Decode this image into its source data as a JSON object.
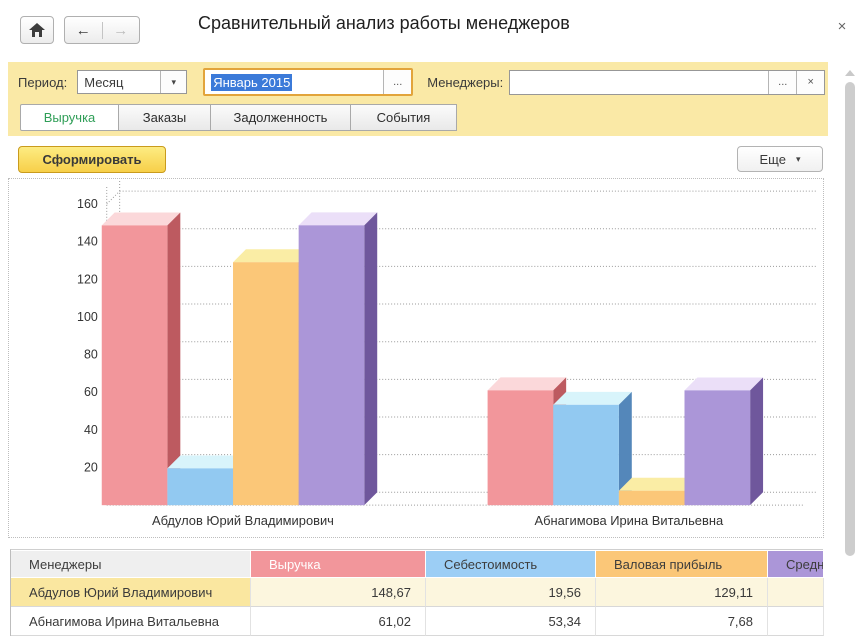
{
  "window": {
    "title": "Сравнительный анализ работы менеджеров",
    "close": "×"
  },
  "nav": {
    "back": "←",
    "forward": "→"
  },
  "filters": {
    "period_label": "Период:",
    "period_type_value": "Месяц",
    "dropdown_arrow": "▾",
    "period_value": "Январь 2015",
    "ellipsis": "...",
    "managers_label": "Менеджеры:",
    "managers_value": "",
    "clear": "×"
  },
  "tabs": [
    {
      "label": "Выручка",
      "active": true
    },
    {
      "label": "Заказы",
      "active": false
    },
    {
      "label": "Задолженность",
      "active": false
    },
    {
      "label": "События",
      "active": false
    }
  ],
  "actions": {
    "generate_label": "Сформировать",
    "more_label": "Еще",
    "more_arrow": "▾"
  },
  "chart_data": {
    "type": "bar",
    "style": "3d-column",
    "categories": [
      "Абдулов Юрий Владимирович",
      "Абнагимова Ирина Витальевна"
    ],
    "series": [
      {
        "name": "Выручка",
        "values": [
          148.67,
          61.02
        ],
        "color": "#f2969b",
        "top": "#fbd8da",
        "side": "#bd5a60"
      },
      {
        "name": "Себестоимость",
        "values": [
          19.56,
          53.34
        ],
        "color": "#92c9f1",
        "top": "#d8f4fb",
        "side": "#5487ba"
      },
      {
        "name": "Валовая прибыль",
        "values": [
          129.11,
          7.68
        ],
        "color": "#fbc778",
        "top": "#faeda5",
        "side": "#d79a50"
      },
      {
        "name": "Средн",
        "values": [
          148.7,
          61.0
        ],
        "color": "#ab96d8",
        "top": "#ebdff8",
        "side": "#6f579c",
        "note": "series header truncated in UI; values estimated from bar heights"
      }
    ],
    "title": "",
    "xlabel": "",
    "ylabel": "",
    "ylim": [
      0,
      170
    ],
    "yticks": [
      20,
      40,
      60,
      80,
      100,
      120,
      140,
      160
    ],
    "grid": "dotted",
    "legend": "none"
  },
  "table": {
    "columns": [
      {
        "label": "Менеджеры",
        "color": "#efefef",
        "text": "#3d3d3d"
      },
      {
        "label": "Выручка",
        "color": "#f2969b",
        "text": "#ffffff"
      },
      {
        "label": "Себестоимость",
        "color": "#9ccef5",
        "text": "#3d3d3d"
      },
      {
        "label": "Валовая прибыль",
        "color": "#fbc778",
        "text": "#3d3d3d"
      },
      {
        "label": "Средн",
        "color": "#ab96d8",
        "text": "#3d3d3d"
      }
    ],
    "rows": [
      {
        "selected": true,
        "cells": [
          "Абдулов Юрий Владимирович",
          "148,67",
          "19,56",
          "129,11",
          ""
        ]
      },
      {
        "selected": false,
        "cells": [
          "Абнагимова Ирина Витальевна",
          "61,02",
          "53,34",
          "7,68",
          ""
        ]
      }
    ]
  }
}
